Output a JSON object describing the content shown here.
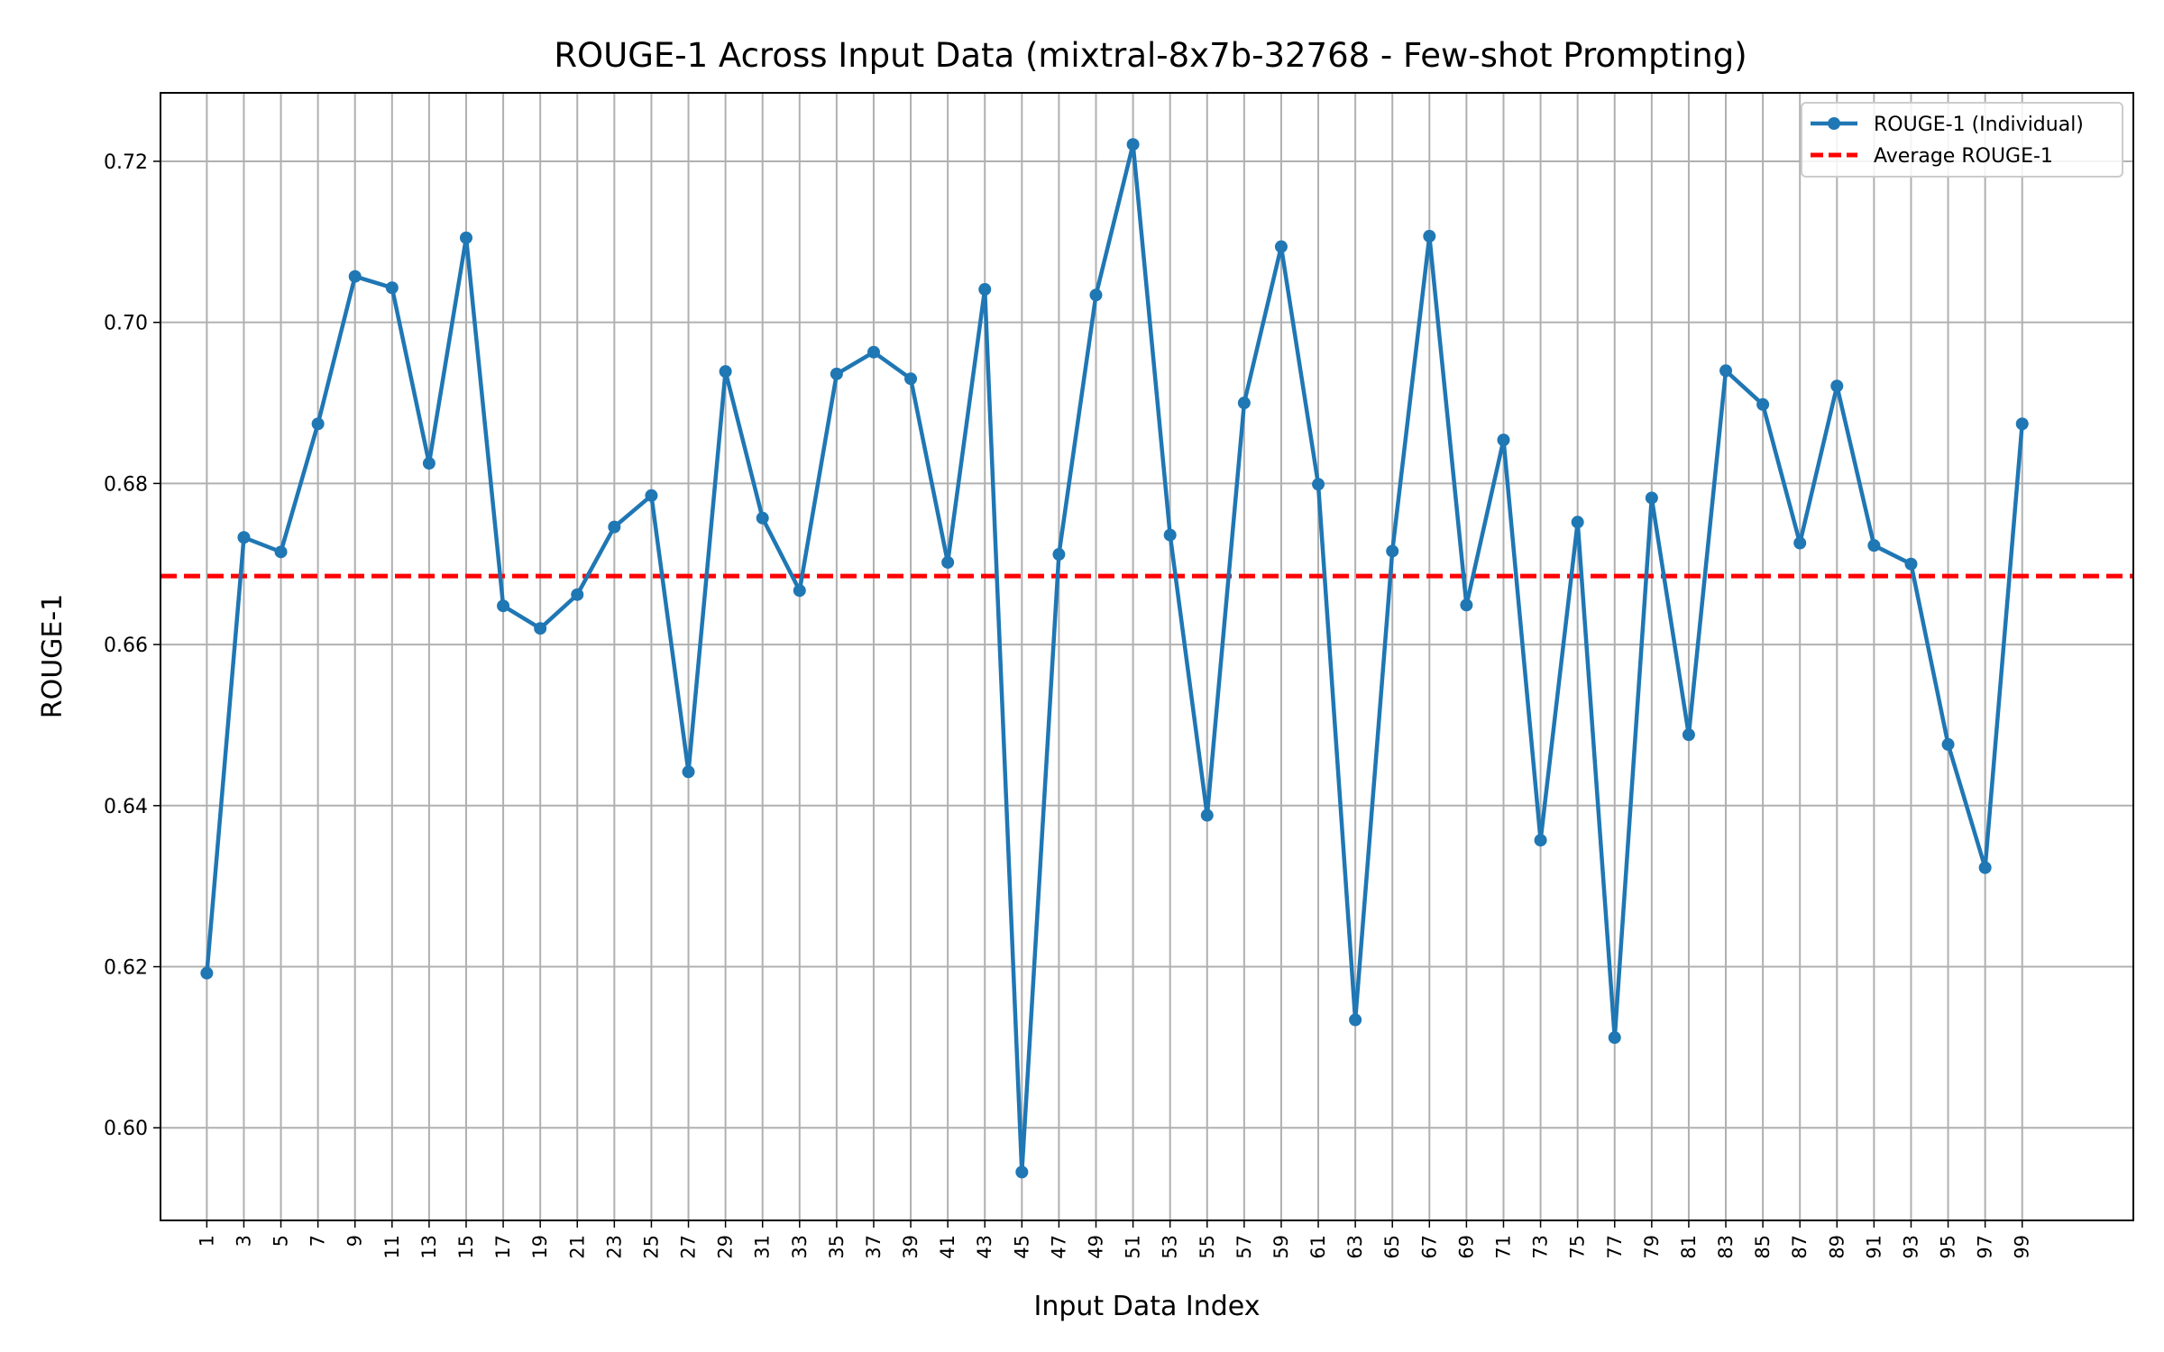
{
  "chart_data": {
    "type": "line",
    "title": "ROUGE-1 Across Input Data (mixtral-8x7b-32768 - Few-shot Prompting)",
    "xlabel": "Input Data Index",
    "ylabel": "ROUGE-1",
    "xlim": [
      -1.5,
      105.0
    ],
    "ylim": [
      0.5885,
      0.7285
    ],
    "x_ticks": [
      1,
      3,
      5,
      7,
      9,
      11,
      13,
      15,
      17,
      19,
      21,
      23,
      25,
      27,
      29,
      31,
      33,
      35,
      37,
      39,
      41,
      43,
      45,
      47,
      49,
      51,
      53,
      55,
      57,
      59,
      61,
      63,
      65,
      67,
      69,
      71,
      73,
      75,
      77,
      79,
      81,
      83,
      85,
      87,
      89,
      91,
      93,
      95,
      97,
      99
    ],
    "y_ticks": [
      0.6,
      0.62,
      0.64,
      0.66,
      0.68,
      0.7,
      0.72
    ],
    "y_tick_labels": [
      "0.60",
      "0.62",
      "0.64",
      "0.66",
      "0.68",
      "0.70",
      "0.72"
    ],
    "grid": true,
    "legend_position": "top-right",
    "series": [
      {
        "name": "ROUGE-1 (Individual)",
        "color": "#1f77b4",
        "style": "solid-with-markers",
        "x": [
          1,
          3,
          5,
          7,
          9,
          11,
          13,
          15,
          17,
          19,
          21,
          23,
          25,
          27,
          29,
          31,
          33,
          35,
          37,
          39,
          41,
          43,
          45,
          47,
          49,
          51,
          53,
          55,
          57,
          59,
          61,
          63,
          65,
          67,
          69,
          71,
          73,
          75,
          77,
          79,
          81,
          83,
          85,
          87,
          89,
          91,
          93,
          95,
          97,
          99
        ],
        "values": [
          0.6192,
          0.6733,
          0.6715,
          0.6874,
          0.7057,
          0.7043,
          0.6825,
          0.7105,
          0.6648,
          0.662,
          0.6662,
          0.6746,
          0.6785,
          0.6442,
          0.6939,
          0.6757,
          0.6667,
          0.6936,
          0.6963,
          0.693,
          0.6702,
          0.7041,
          0.5945,
          0.6712,
          0.7034,
          0.7221,
          0.6736,
          0.6388,
          0.69,
          0.7094,
          0.6799,
          0.6134,
          0.6716,
          0.7107,
          0.6649,
          0.6854,
          0.6357,
          0.6752,
          0.6112,
          0.6782,
          0.6488,
          0.694,
          0.6898,
          0.6726,
          0.6921,
          0.6723,
          0.67,
          0.6476,
          0.6323,
          0.6874
        ]
      },
      {
        "name": "Average ROUGE-1",
        "color": "#ff0000",
        "style": "dashed",
        "value": 0.6685
      }
    ]
  }
}
